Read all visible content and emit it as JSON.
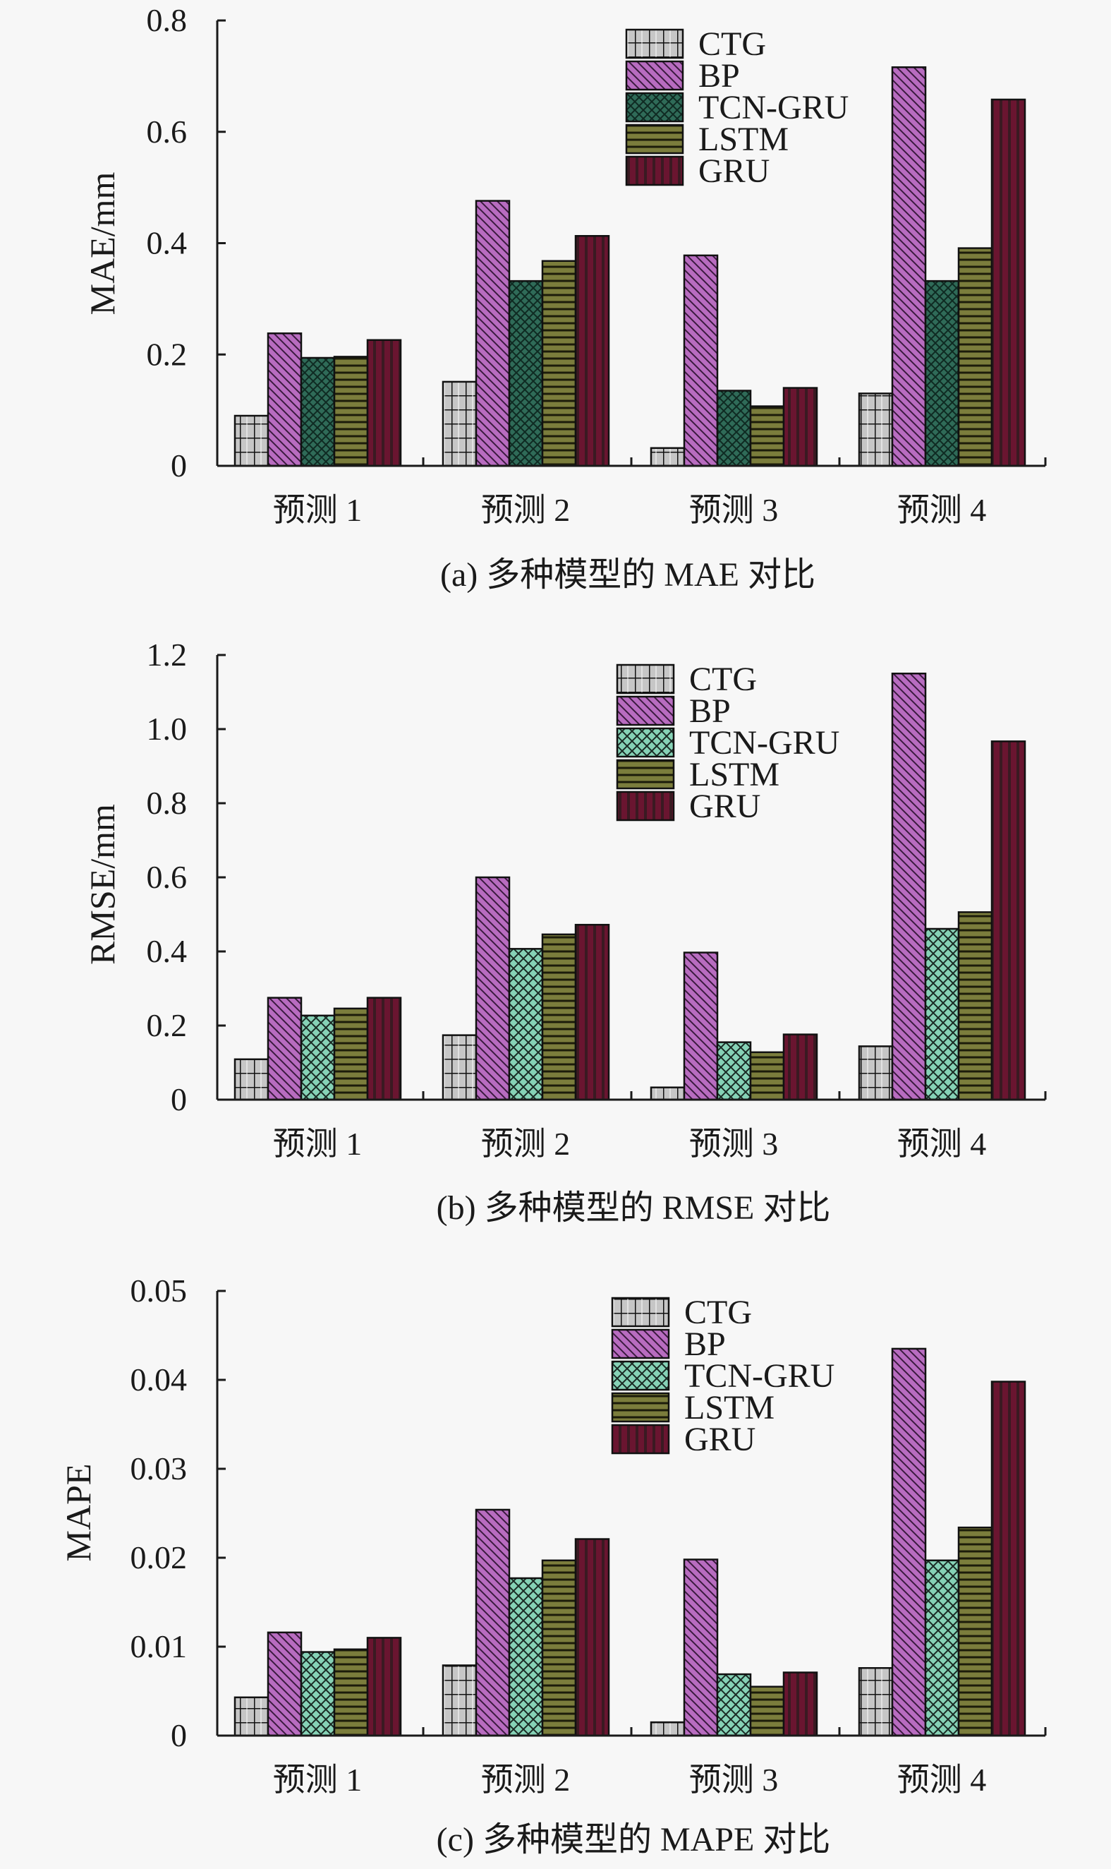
{
  "colors": {
    "CTG": "#c6c6c6",
    "BP": "#b86cc0",
    "TCN-GRU-dark": "#2f6b58",
    "TCN-GRU-light": "#86d2b6",
    "LSTM": "#7b7d3c",
    "GRU": "#5c1a2c",
    "axis": "#1a1a1a"
  },
  "chart_data": [
    {
      "type": "bar",
      "title": "(a) 多种模型的 MAE 对比",
      "xlabel": "",
      "ylabel": "MAE/mm",
      "ylim": [
        0,
        0.8
      ],
      "yticks": [
        0,
        0.2,
        0.4,
        0.6,
        0.8
      ],
      "ytick_labels": [
        "0",
        "0.2",
        "0.4",
        "0.6",
        "0.8"
      ],
      "categories": [
        "预测 1",
        "预测 2",
        "预测 3",
        "预测 4"
      ],
      "legend_position": "top-right",
      "grid": false,
      "tcn_style": "dark",
      "series": [
        {
          "name": "CTG",
          "values": [
            0.09,
            0.151,
            0.032,
            0.13
          ]
        },
        {
          "name": "BP",
          "values": [
            0.238,
            0.476,
            0.378,
            0.716
          ]
        },
        {
          "name": "TCN-GRU",
          "values": [
            0.194,
            0.332,
            0.135,
            0.332
          ]
        },
        {
          "name": "LSTM",
          "values": [
            0.196,
            0.368,
            0.107,
            0.391
          ]
        },
        {
          "name": "GRU",
          "values": [
            0.226,
            0.413,
            0.14,
            0.658
          ]
        }
      ]
    },
    {
      "type": "bar",
      "title": "(b) 多种模型的 RMSE 对比",
      "xlabel": "",
      "ylabel": "RMSE/mm",
      "ylim": [
        0,
        1.2
      ],
      "yticks": [
        0,
        0.2,
        0.4,
        0.6,
        0.8,
        1.0,
        1.2
      ],
      "ytick_labels": [
        "0",
        "0.2",
        "0.4",
        "0.6",
        "0.8",
        "1.0",
        "1.2"
      ],
      "categories": [
        "预测 1",
        "预测 2",
        "预测 3",
        "预测 4"
      ],
      "legend_position": "top-right",
      "grid": false,
      "tcn_style": "light",
      "series": [
        {
          "name": "CTG",
          "values": [
            0.109,
            0.174,
            0.033,
            0.144
          ]
        },
        {
          "name": "BP",
          "values": [
            0.275,
            0.6,
            0.397,
            1.15
          ]
        },
        {
          "name": "TCN-GRU",
          "values": [
            0.227,
            0.407,
            0.155,
            0.461
          ]
        },
        {
          "name": "LSTM",
          "values": [
            0.246,
            0.446,
            0.128,
            0.506
          ]
        },
        {
          "name": "GRU",
          "values": [
            0.275,
            0.472,
            0.176,
            0.967
          ]
        }
      ]
    },
    {
      "type": "bar",
      "title": "(c) 多种模型的 MAPE 对比",
      "xlabel": "",
      "ylabel": "MAPE",
      "ylim": [
        0,
        0.05
      ],
      "yticks": [
        0,
        0.01,
        0.02,
        0.03,
        0.04,
        0.05
      ],
      "ytick_labels": [
        "0",
        "0.01",
        "0.02",
        "0.03",
        "0.04",
        "0.05"
      ],
      "categories": [
        "预测 1",
        "预测 2",
        "预测 3",
        "预测 4"
      ],
      "legend_position": "top-right",
      "grid": false,
      "tcn_style": "light",
      "series": [
        {
          "name": "CTG",
          "values": [
            0.0043,
            0.0079,
            0.0015,
            0.0076
          ]
        },
        {
          "name": "BP",
          "values": [
            0.0116,
            0.0254,
            0.0198,
            0.0435
          ]
        },
        {
          "name": "TCN-GRU",
          "values": [
            0.0094,
            0.0177,
            0.0069,
            0.0197
          ]
        },
        {
          "name": "LSTM",
          "values": [
            0.0097,
            0.0197,
            0.0055,
            0.0234
          ]
        },
        {
          "name": "GRU",
          "values": [
            0.011,
            0.0221,
            0.0071,
            0.0398
          ]
        }
      ]
    }
  ]
}
